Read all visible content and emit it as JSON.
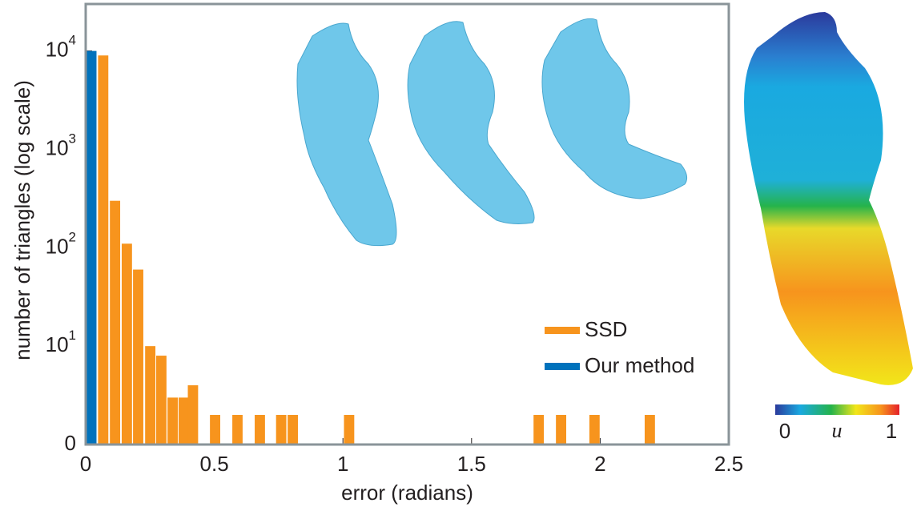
{
  "chart_data": {
    "type": "bar",
    "xlabel": "error (radians)",
    "ylabel": "number of triangles (log scale)",
    "xlim": [
      0,
      2.5
    ],
    "xticks": [
      0,
      0.5,
      1,
      1.5,
      2,
      2.5
    ],
    "ylim": [
      1,
      30000
    ],
    "log_y": true,
    "yticks": [
      {
        "value": 1,
        "label": "0"
      },
      {
        "value": 10,
        "label": "10",
        "sup": "1"
      },
      {
        "value": 100,
        "label": "10",
        "sup": "2"
      },
      {
        "value": 1000,
        "label": "10",
        "sup": "3"
      },
      {
        "value": 10000,
        "label": "10",
        "sup": "4"
      }
    ],
    "bar_width": 0.04,
    "legend": "lower right",
    "series": [
      {
        "name": "SSD",
        "color": "#f7941d",
        "x": [
          0.068,
          0.114,
          0.16,
          0.204,
          0.251,
          0.294,
          0.338,
          0.381,
          0.417,
          0.503,
          0.59,
          0.677,
          0.76,
          0.805,
          1.024,
          1.761,
          1.848,
          1.978,
          2.193
        ],
        "values": [
          9000,
          300,
          110,
          60,
          10,
          8,
          3,
          3,
          4,
          2,
          2,
          2,
          2,
          2,
          2,
          2,
          2,
          2,
          2
        ]
      },
      {
        "name": "Our method",
        "color": "#0072bc",
        "x": [
          0.022
        ],
        "values": [
          10000
        ]
      }
    ],
    "colorbar": {
      "min_label": "0",
      "var_label": "u",
      "max_label": "1"
    }
  }
}
